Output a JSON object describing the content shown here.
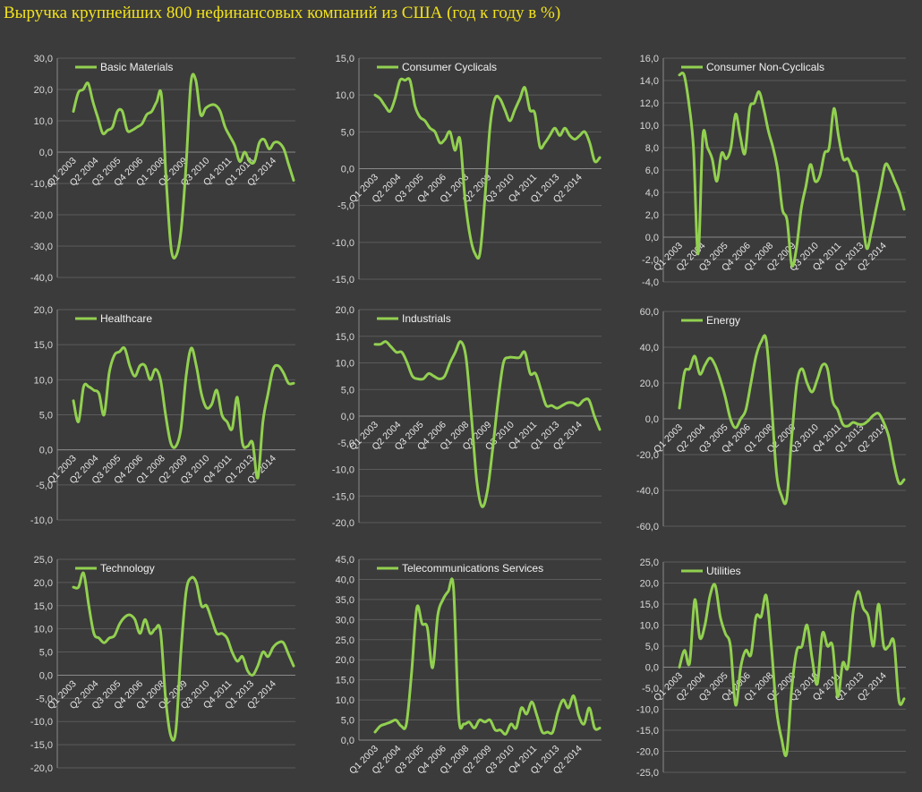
{
  "page": {
    "title": "Выручка крупнейших 800 нефинансовых компаний из США (год к году в %)"
  },
  "colors": {
    "background": "#3b3b3b",
    "series": "#92d050",
    "grid": "#5b5b5b",
    "title": "#f2e21a",
    "text": "#e6e6e6"
  },
  "chart_data": [
    {
      "type": "line",
      "legend": "Basic Materials",
      "ylim": [
        -40,
        30
      ],
      "yticks": [
        "30,0",
        "20,0",
        "10,0",
        "0,0",
        "-10,0",
        "-20,0",
        "-30,0",
        "-40,0"
      ],
      "xtick_labels": [
        "Q1 2003",
        "Q2 2004",
        "Q3 2005",
        "Q4 2006",
        "Q1 2008",
        "Q2 2009",
        "Q3 2010",
        "Q4 2011",
        "Q1 2013",
        "Q2 2014"
      ],
      "values": [
        13,
        19,
        20,
        22,
        16,
        11,
        6,
        7,
        8,
        13,
        13,
        7,
        7,
        8,
        9,
        12,
        13,
        16,
        18,
        -10,
        -31,
        -33,
        -25,
        -5,
        22,
        23,
        12,
        14,
        15,
        15,
        13,
        8,
        5,
        2,
        -3,
        0,
        -3,
        -3,
        3,
        4,
        1,
        3,
        3,
        1,
        -4,
        -9
      ]
    },
    {
      "type": "line",
      "legend": "Consumer Cyclicals",
      "ylim": [
        -15,
        15
      ],
      "yticks": [
        "15,0",
        "10,0",
        "5,0",
        "0,0",
        "-5,0",
        "-10,0",
        "-15,0"
      ],
      "xtick_labels": [
        "Q1 2003",
        "Q2 2004",
        "Q3 2005",
        "Q4 2006",
        "Q1 2008",
        "Q2 2009",
        "Q3 2010",
        "Q4 2011",
        "Q1 2013",
        "Q2 2014"
      ],
      "values": [
        10,
        9.5,
        8.5,
        7.8,
        9.5,
        12,
        12,
        12,
        8.5,
        7,
        6.5,
        5.5,
        5,
        3.5,
        4,
        5,
        2.5,
        4,
        -4,
        -9,
        -11.5,
        -11.5,
        -4,
        5.5,
        9.5,
        9.5,
        8,
        6.5,
        8,
        9.5,
        11,
        8,
        7.5,
        3,
        3.5,
        4.5,
        5.5,
        4.5,
        5.5,
        4.5,
        4,
        4.5,
        5,
        3.5,
        1,
        1.5
      ]
    },
    {
      "type": "line",
      "legend": "Consumer Non-Cyclicals",
      "ylim": [
        -4,
        16
      ],
      "yticks": [
        "16,0",
        "14,0",
        "12,0",
        "10,0",
        "8,0",
        "6,0",
        "4,0",
        "2,0",
        "0,0",
        "-2,0",
        "-4,0"
      ],
      "xtick_labels": [
        "Q1 2003",
        "Q2 2004",
        "Q3 2005",
        "Q4 2006",
        "Q1 2008",
        "Q2 2009",
        "Q3 2010",
        "Q4 2011",
        "Q1 2013",
        "Q2 2014"
      ],
      "values": [
        14.5,
        14.5,
        12,
        8,
        -1.5,
        9,
        8,
        7,
        5,
        7.5,
        7,
        8,
        11,
        9,
        7.5,
        11.5,
        12,
        13,
        11.5,
        9.5,
        8,
        6,
        2.5,
        1.5,
        -2.5,
        -1,
        2.5,
        4.5,
        6.5,
        5,
        5.5,
        7.5,
        8,
        11.5,
        9,
        7,
        7,
        6,
        5.5,
        2,
        -1,
        0.5,
        2.5,
        4.5,
        6.5,
        6,
        5,
        4,
        2.5
      ]
    },
    {
      "type": "line",
      "legend": "Healthcare",
      "ylim": [
        -10,
        20
      ],
      "yticks": [
        "20,0",
        "15,0",
        "10,0",
        "5,0",
        "0,0",
        "-5,0",
        "-10,0"
      ],
      "xtick_labels": [
        "Q1 2003",
        "Q2 2004",
        "Q3 2005",
        "Q4 2006",
        "Q1 2008",
        "Q2 2009",
        "Q3 2010",
        "Q4 2011",
        "Q1 2013",
        "Q2 2014"
      ],
      "values": [
        7,
        4,
        9,
        9,
        8.5,
        8,
        5,
        11,
        13.5,
        14,
        14.5,
        12,
        10.5,
        12,
        12,
        10,
        11.5,
        10,
        5,
        1,
        0.5,
        3,
        10.5,
        14.5,
        12,
        8,
        6,
        6.5,
        8.5,
        5,
        4,
        3,
        7.5,
        1,
        0.5,
        1,
        -4,
        4,
        8,
        11.5,
        12,
        11,
        9.5,
        9.5
      ]
    },
    {
      "type": "line",
      "legend": "Industrials",
      "ylim": [
        -20,
        20
      ],
      "yticks": [
        "20,0",
        "15,0",
        "10,0",
        "5,0",
        "0,0",
        "-5,0",
        "-10,0",
        "-15,0",
        "-20,0"
      ],
      "xtick_labels": [
        "Q1 2003",
        "Q2 2004",
        "Q3 2005",
        "Q4 2006",
        "Q1 2008",
        "Q2 2009",
        "Q3 2010",
        "Q4 2011",
        "Q1 2013",
        "Q2 2014"
      ],
      "values": [
        13.5,
        13.5,
        14,
        13,
        12,
        12,
        10,
        7.5,
        7,
        7,
        8,
        7.5,
        7,
        7.5,
        10,
        12,
        14,
        11,
        0,
        -12,
        -17,
        -14,
        -6,
        3,
        10,
        11,
        11,
        11,
        12,
        8,
        8,
        5,
        2,
        2,
        1.5,
        2,
        2.5,
        2.5,
        2,
        3,
        3,
        0,
        -2.5
      ]
    },
    {
      "type": "line",
      "legend": "Energy",
      "ylim": [
        -60,
        60
      ],
      "yticks": [
        "60,0",
        "40,0",
        "20,0",
        "0,0",
        "-20,0",
        "-40,0",
        "-60,0"
      ],
      "xtick_labels": [
        "Q1 2003",
        "Q2 2004",
        "Q3 2005",
        "Q4 2006",
        "Q1 2008",
        "Q2 2009",
        "Q3 2010",
        "Q4 2011",
        "Q1 2013",
        "Q2 2014"
      ],
      "values": [
        6,
        26,
        28,
        35,
        25,
        30,
        34,
        30,
        22,
        12,
        0,
        -5,
        0,
        5,
        20,
        35,
        43,
        44,
        10,
        -30,
        -43,
        -45,
        -10,
        20,
        28,
        20,
        15,
        22,
        30,
        28,
        10,
        5,
        -3,
        -4,
        -2,
        -3,
        -3,
        -1,
        2,
        3,
        -2,
        -10,
        -25,
        -36,
        -34
      ]
    },
    {
      "type": "line",
      "legend": "Technology",
      "ylim": [
        -20,
        25
      ],
      "yticks": [
        "25,0",
        "20,0",
        "15,0",
        "10,0",
        "5,0",
        "0,0",
        "-5,0",
        "-10,0",
        "-15,0",
        "-20,0"
      ],
      "xtick_labels": [
        "Q1 2003",
        "Q2 2004",
        "Q3 2005",
        "Q4 2006",
        "Q1 2008",
        "Q2 2009",
        "Q3 2010",
        "Q4 2011",
        "Q1 2013",
        "Q2 2014"
      ],
      "values": [
        19,
        19,
        22,
        15,
        9,
        8,
        7,
        8,
        8.5,
        11,
        12.5,
        13,
        12,
        9,
        12,
        9,
        10,
        9.5,
        -5,
        -13,
        -12,
        5,
        18,
        21,
        20,
        15,
        15,
        12,
        9,
        9,
        8,
        5,
        3,
        4,
        1,
        0,
        2,
        5,
        4,
        6,
        7,
        7,
        4.5,
        2
      ]
    },
    {
      "type": "line",
      "legend": "Telecommunications Services",
      "ylim": [
        0,
        45
      ],
      "yticks": [
        "45,0",
        "40,0",
        "35,0",
        "30,0",
        "25,0",
        "20,0",
        "15,0",
        "10,0",
        "5,0",
        "0,0"
      ],
      "xtick_labels": [
        "Q1 2003",
        "Q2 2004",
        "Q3 2005",
        "Q4 2006",
        "Q1 2008",
        "Q2 2009",
        "Q3 2010",
        "Q4 2011",
        "Q1 2013",
        "Q2 2014"
      ],
      "values": [
        2,
        3.5,
        4,
        4.5,
        5,
        3.5,
        4,
        17,
        33,
        29,
        28,
        18,
        31,
        35,
        37,
        38,
        6,
        4,
        4.5,
        3,
        5,
        4.5,
        5,
        2.5,
        2.5,
        1.5,
        4,
        3,
        8,
        6.5,
        9.5,
        6,
        2,
        2,
        2,
        7,
        10,
        8,
        11,
        6,
        4,
        8,
        3,
        3
      ]
    },
    {
      "type": "line",
      "legend": "Utilities",
      "ylim": [
        -25,
        25
      ],
      "yticks": [
        "25,0",
        "20,0",
        "15,0",
        "10,0",
        "5,0",
        "0,0",
        "-5,0",
        "-10,0",
        "-15,0",
        "-20,0",
        "-25,0"
      ],
      "xtick_labels": [
        "Q1 2003",
        "Q2 2004",
        "Q3 2005",
        "Q4 2006",
        "Q1 2008",
        "Q2 2009",
        "Q3 2010",
        "Q4 2011",
        "Q1 2013",
        "Q2 2014"
      ],
      "values": [
        0,
        4,
        1,
        16,
        7,
        10,
        17,
        19.5,
        12,
        8,
        5,
        -9,
        0,
        4,
        3,
        12,
        12,
        17,
        5,
        -10,
        -17,
        -20.5,
        -5,
        4,
        5,
        10,
        2,
        -4,
        8,
        5,
        5,
        -7,
        1,
        0,
        13,
        18,
        14,
        12,
        5,
        15,
        5,
        5,
        6,
        -8,
        -7.5
      ]
    }
  ]
}
